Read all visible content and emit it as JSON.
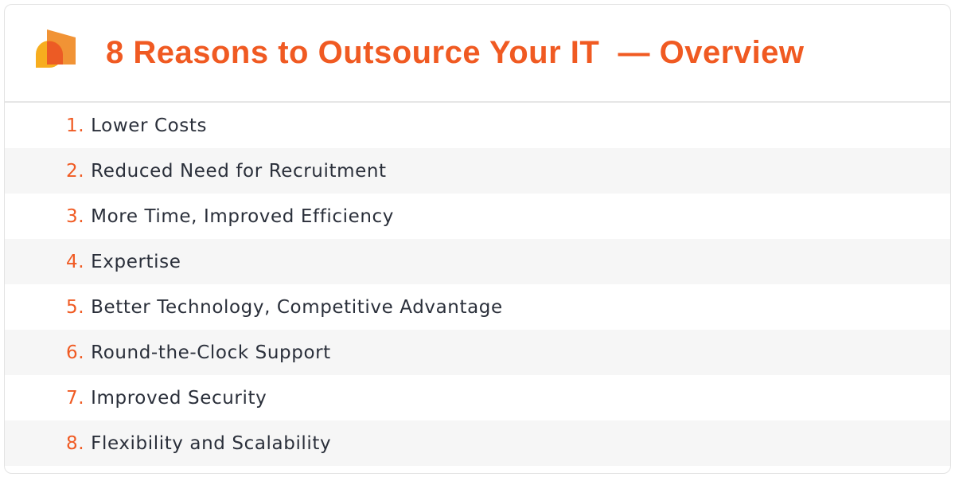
{
  "title": "8 Reasons to Outsource Your IT  — Overview",
  "colors": {
    "accent": "#f05a22",
    "logo_orange": "#f08a24",
    "logo_yellow": "#f7ad1e"
  },
  "items": [
    {
      "num": "1.",
      "label": "Lower Costs"
    },
    {
      "num": "2.",
      "label": "Reduced Need for Recruitment"
    },
    {
      "num": "3.",
      "label": "More Time, Improved Efficiency"
    },
    {
      "num": "4.",
      "label": "Expertise"
    },
    {
      "num": "5.",
      "label": "Better Technology, Competitive Advantage"
    },
    {
      "num": "6.",
      "label": "Round-the-Clock Support"
    },
    {
      "num": "7.",
      "label": "Improved Security"
    },
    {
      "num": "8.",
      "label": "Flexibility and Scalability"
    }
  ]
}
